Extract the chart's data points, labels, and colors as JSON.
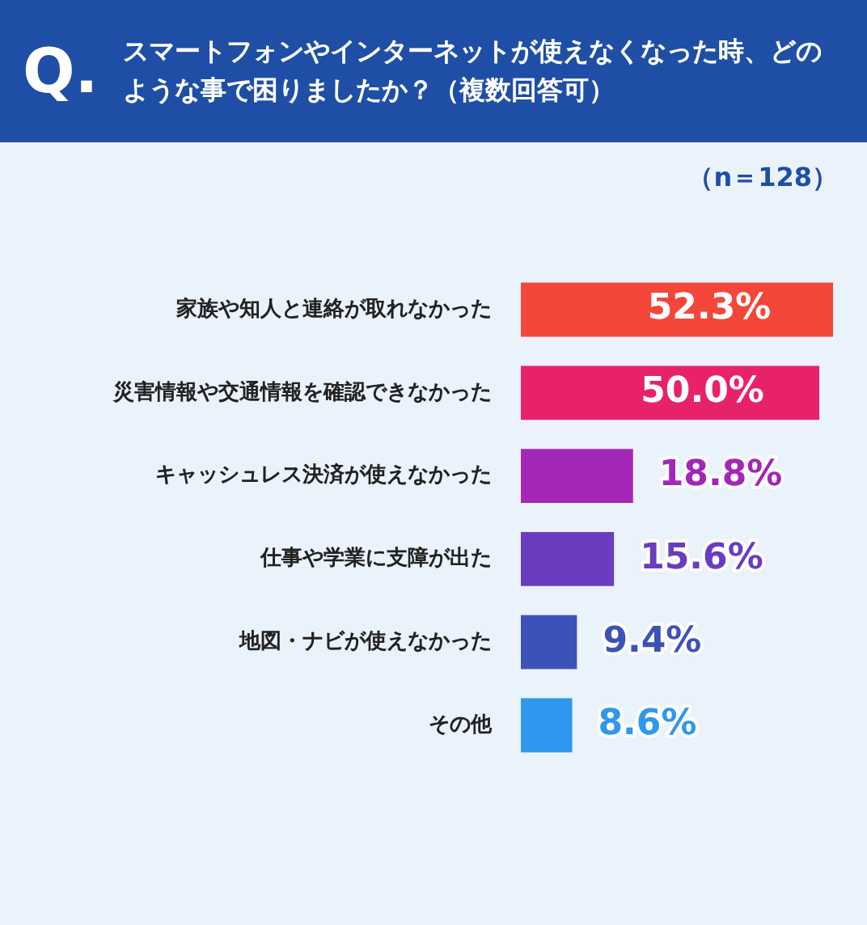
{
  "chart_data": {
    "type": "bar",
    "orientation": "horizontal",
    "title": "スマートフォンやインターネットが使えなくなった時、どのような事で困りましたか？（複数回答可）",
    "annotations": [
      "Q.",
      "（n＝128）"
    ],
    "categories": [
      "家族や知人と連絡が取れなかった",
      "災害情報や交通情報を確認できなかった",
      "キャッシュレス決済が使えなかった",
      "仕事や学業に支障が出た",
      "地図・ナビが使えなかった",
      "その他"
    ],
    "values": [
      52.3,
      50.0,
      18.8,
      15.6,
      9.4,
      8.6
    ],
    "colors": [
      "#f4473a",
      "#e8216b",
      "#a326b8",
      "#6a3cc0",
      "#3d52b8",
      "#2d98ee"
    ],
    "value_labels": [
      "52.3%",
      "50.0%",
      "18.8%",
      "15.6%",
      "9.4%",
      "8.6%"
    ],
    "legend": false
  }
}
